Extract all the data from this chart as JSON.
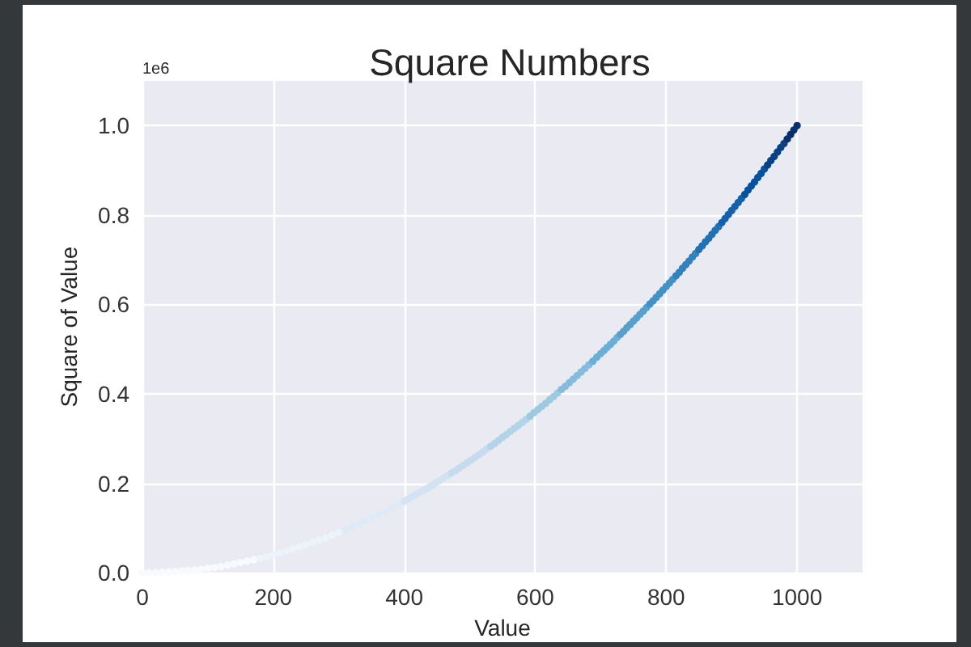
{
  "chart_data": {
    "type": "scatter",
    "title": "Square Numbers",
    "xlabel": "Value",
    "ylabel": "Square of Value",
    "annotations": [
      "1e6"
    ],
    "xlim": [
      0,
      1100
    ],
    "xticks": [
      0,
      200,
      400,
      600,
      800,
      1000
    ],
    "ylim": [
      0,
      1.1
    ],
    "yticks": [
      {
        "value": 0,
        "label": "0.0"
      },
      0.2,
      0.4,
      0.6,
      0.8,
      {
        "value": 1,
        "label": "1.0"
      }
    ],
    "grid": true,
    "marker": "circle",
    "series": [
      {
        "x": [
          0,
          10,
          20,
          30,
          40,
          50,
          60,
          70,
          80,
          90,
          100,
          110,
          120,
          130,
          140,
          150,
          160,
          170,
          180,
          190,
          200,
          210,
          220,
          230,
          240,
          250,
          260,
          270,
          280,
          290,
          300,
          310,
          320,
          330,
          340,
          350,
          360,
          370,
          380,
          390,
          400,
          406,
          412,
          418,
          424,
          430,
          436,
          442,
          448,
          454,
          460,
          466,
          472,
          478,
          484,
          490,
          496,
          502,
          508,
          514,
          520,
          526,
          532,
          538,
          544,
          550,
          556,
          562,
          568,
          574,
          580,
          586,
          592,
          598,
          604,
          610,
          616,
          622,
          628,
          634,
          640,
          646,
          652,
          658,
          664,
          670,
          676,
          682,
          688,
          694,
          700,
          705,
          710,
          715,
          720,
          725,
          730,
          735,
          740,
          745,
          750,
          755,
          760,
          765,
          770,
          775,
          780,
          785,
          790,
          795,
          800,
          805,
          810,
          815,
          820,
          825,
          830,
          835,
          840,
          845,
          850,
          855,
          860,
          865,
          870,
          875,
          880,
          885,
          890,
          895,
          900,
          905,
          910,
          915,
          920,
          925,
          930,
          935,
          940,
          945,
          950,
          955,
          960,
          965,
          970,
          975,
          980,
          985,
          990,
          995,
          1000
        ],
        "values": [
          0,
          0,
          0,
          0.001,
          0.002,
          0.003,
          0.004,
          0.005,
          0.006,
          0.008,
          0.01,
          0.012,
          0.014,
          0.017,
          0.02,
          0.023,
          0.026,
          0.029,
          0.032,
          0.036,
          0.04,
          0.044,
          0.048,
          0.053,
          0.058,
          0.063,
          0.068,
          0.073,
          0.078,
          0.084,
          0.09,
          0.096,
          0.102,
          0.109,
          0.116,
          0.123,
          0.13,
          0.137,
          0.144,
          0.152,
          0.16,
          0.165,
          0.17,
          0.175,
          0.18,
          0.185,
          0.19,
          0.195,
          0.201,
          0.206,
          0.212,
          0.217,
          0.223,
          0.228,
          0.234,
          0.24,
          0.246,
          0.252,
          0.258,
          0.264,
          0.27,
          0.277,
          0.283,
          0.289,
          0.296,
          0.303,
          0.309,
          0.316,
          0.323,
          0.329,
          0.336,
          0.343,
          0.35,
          0.358,
          0.365,
          0.372,
          0.379,
          0.387,
          0.394,
          0.402,
          0.41,
          0.417,
          0.425,
          0.433,
          0.441,
          0.449,
          0.457,
          0.465,
          0.473,
          0.482,
          0.49,
          0.497,
          0.504,
          0.511,
          0.518,
          0.526,
          0.533,
          0.54,
          0.548,
          0.555,
          0.563,
          0.57,
          0.578,
          0.585,
          0.593,
          0.601,
          0.608,
          0.616,
          0.624,
          0.632,
          0.64,
          0.648,
          0.656,
          0.664,
          0.672,
          0.681,
          0.689,
          0.697,
          0.706,
          0.714,
          0.723,
          0.731,
          0.74,
          0.748,
          0.757,
          0.766,
          0.774,
          0.783,
          0.792,
          0.801,
          0.81,
          0.819,
          0.828,
          0.837,
          0.846,
          0.856,
          0.865,
          0.874,
          0.884,
          0.893,
          0.903,
          0.912,
          0.922,
          0.931,
          0.941,
          0.951,
          0.96,
          0.97,
          0.98,
          0.99,
          1
        ],
        "colors": [
          "#f7fbff",
          "#f7fbff",
          "#f7fbff",
          "#f7fbff",
          "#f7fbff",
          "#f7fbff",
          "#f7fbff",
          "#f7fbff",
          "#f7fbff",
          "#f7fbff",
          "#f7fbff",
          "#f7fbff",
          "#f7fbff",
          "#f7fbff",
          "#f7fbff",
          "#f7fbff",
          "#f7fbff",
          "#f7fbff",
          "#ebf3fb",
          "#ebf3fb",
          "#ebf3fb",
          "#ebf3fb",
          "#ebf3fb",
          "#ebf3fb",
          "#ebf3fb",
          "#ebf3fb",
          "#ebf3fb",
          "#ebf3fb",
          "#ebf3fb",
          "#ebf3fb",
          "#ebf3fb",
          "#deebf7",
          "#deebf7",
          "#deebf7",
          "#deebf7",
          "#deebf7",
          "#deebf7",
          "#deebf7",
          "#deebf7",
          "#deebf7",
          "#d2e3f3",
          "#d2e3f3",
          "#d2e3f3",
          "#d2e3f3",
          "#d2e3f3",
          "#d2e3f3",
          "#d2e3f3",
          "#d2e3f3",
          "#d2e3f3",
          "#d2e3f3",
          "#d2e3f3",
          "#d2e3f3",
          "#c6dbef",
          "#c6dbef",
          "#c6dbef",
          "#c6dbef",
          "#c6dbef",
          "#c6dbef",
          "#c6dbef",
          "#c6dbef",
          "#c6dbef",
          "#c6dbef",
          "#b2d3e8",
          "#b2d3e8",
          "#b2d3e8",
          "#b2d3e8",
          "#b2d3e8",
          "#b2d3e8",
          "#b2d3e8",
          "#b2d3e8",
          "#b2d3e8",
          "#b2d3e8",
          "#9ecae1",
          "#9ecae1",
          "#9ecae1",
          "#9ecae1",
          "#9ecae1",
          "#9ecae1",
          "#9ecae1",
          "#9ecae1",
          "#85bcdc",
          "#85bcdc",
          "#85bcdc",
          "#85bcdc",
          "#85bcdc",
          "#85bcdc",
          "#85bcdc",
          "#85bcdc",
          "#6baed6",
          "#6baed6",
          "#6baed6",
          "#6baed6",
          "#6baed6",
          "#6baed6",
          "#6baed6",
          "#6baed6",
          "#57a0ce",
          "#57a0ce",
          "#57a0ce",
          "#57a0ce",
          "#57a0ce",
          "#57a0ce",
          "#57a0ce",
          "#57a0ce",
          "#57a0ce",
          "#4292c6",
          "#4292c6",
          "#4292c6",
          "#4292c6",
          "#4292c6",
          "#4292c6",
          "#4292c6",
          "#4292c6",
          "#3282be",
          "#3282be",
          "#3282be",
          "#3282be",
          "#3282be",
          "#3282be",
          "#3282be",
          "#2171b5",
          "#2171b5",
          "#2171b5",
          "#2171b5",
          "#2171b5",
          "#2171b5",
          "#2171b5",
          "#1561a9",
          "#1561a9",
          "#1561a9",
          "#1561a9",
          "#1561a9",
          "#1561a9",
          "#1561a9",
          "#08519c",
          "#08519c",
          "#08519c",
          "#08519c",
          "#08519c",
          "#08519c",
          "#08519c",
          "#084184",
          "#084184",
          "#084184",
          "#084184",
          "#084184",
          "#084184",
          "#08306b",
          "#08306b",
          "#08306b",
          "#08306b"
        ]
      }
    ]
  }
}
